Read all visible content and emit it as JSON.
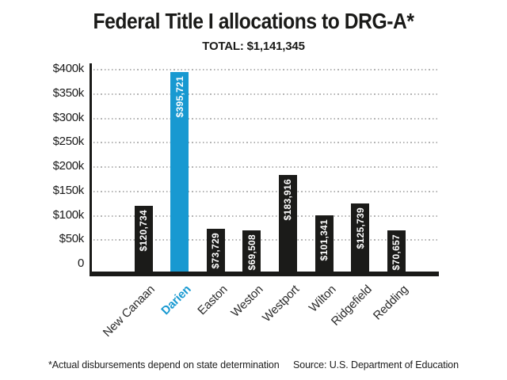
{
  "header": {
    "title": "Federal Title I allocations to DRG-A*",
    "subtitle": "TOTAL: $1,141,345"
  },
  "footer": {
    "note": "*Actual disbursements depend on state determination",
    "source": "Source: U.S. Department of Education"
  },
  "colors": {
    "highlight_blue": "#1899d1",
    "bar_black": "#1b1b19",
    "gridline_gray": "#b4b4b4",
    "axis_black": "#1a1a18",
    "value_label_white": "#ffffff"
  },
  "chart_data": {
    "type": "bar",
    "title": "Federal Title I allocations to DRG-A*",
    "subtitle": "TOTAL: $1,141,345",
    "categories": [
      "New Canaan",
      "Darien",
      "Easton",
      "Weston",
      "Westport",
      "Wilton",
      "Ridgefield",
      "Redding"
    ],
    "values": [
      120734,
      395721,
      73729,
      69508,
      183916,
      101341,
      125739,
      70657
    ],
    "value_labels": [
      "$120,734",
      "$395,721",
      "$73,729",
      "$69,508",
      "$183,916",
      "$101,341",
      "$125,739",
      "$70,657"
    ],
    "highlighted_category": "Darien",
    "total": 1141345,
    "ylim": [
      0,
      400000
    ],
    "ytick_step": 50000,
    "ytick_labels": [
      "$400k",
      "$350k",
      "$300k",
      "$250k",
      "$200k",
      "$150k",
      "$100k",
      "$50k",
      "0"
    ],
    "grid": "horizontal dotted",
    "legend": "none",
    "xlabel_rotation_deg": -45,
    "bar_value_label_orientation": "vertical-bottom-to-top"
  }
}
